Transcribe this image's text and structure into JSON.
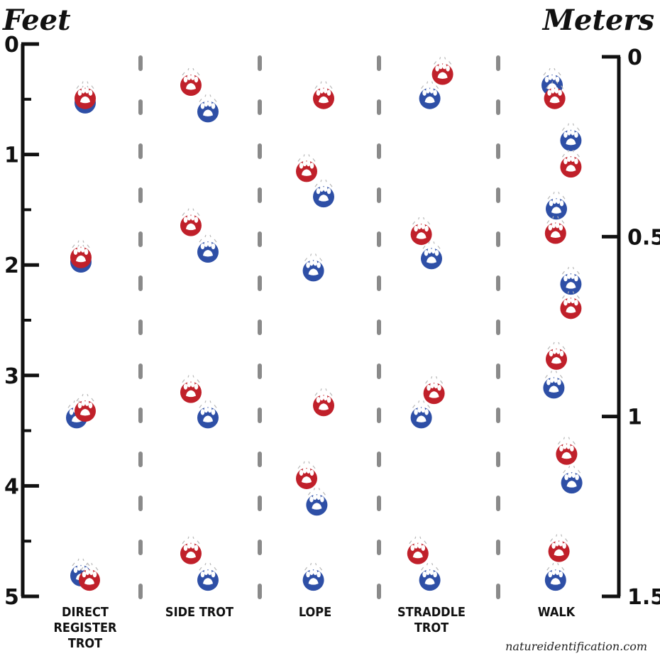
{
  "feet_axis": {
    "title": "Feet",
    "ticks": [
      {
        "value": 0,
        "label": "0"
      },
      {
        "value": 1,
        "label": "1"
      },
      {
        "value": 2,
        "label": "2"
      },
      {
        "value": 3,
        "label": "3"
      },
      {
        "value": 4,
        "label": "4"
      },
      {
        "value": 5,
        "label": "5"
      }
    ]
  },
  "meters_axis": {
    "title": "Meters",
    "ticks": [
      {
        "value": 0,
        "label": "0"
      },
      {
        "value": 0.5,
        "label": "0.5"
      },
      {
        "value": 1,
        "label": "1"
      },
      {
        "value": 1.5,
        "label": "1.5"
      }
    ]
  },
  "colors": {
    "front_paw": "#c0202a",
    "hind_paw": "#2e4fa6",
    "axis": "#111111",
    "divider": "#8a8a8a"
  },
  "gaits": [
    {
      "label_lines": [
        "DIRECT",
        "REGISTER",
        "TROT"
      ],
      "prints": [
        {
          "paw": "hind",
          "side": 0,
          "ft": 0.52
        },
        {
          "paw": "front",
          "side": 0,
          "ft": 0.48
        },
        {
          "paw": "hind",
          "side": -0.5,
          "ft": 1.96
        },
        {
          "paw": "front",
          "side": -0.5,
          "ft": 1.92
        },
        {
          "paw": "hind",
          "side": -1,
          "ft": 3.37
        },
        {
          "paw": "front",
          "side": 0,
          "ft": 3.31
        },
        {
          "paw": "hind",
          "side": -0.5,
          "ft": 4.8
        },
        {
          "paw": "front",
          "side": 0.5,
          "ft": 4.84
        }
      ]
    },
    {
      "label_lines": [
        "SIDE TROT"
      ],
      "prints": [
        {
          "paw": "front",
          "side": -1,
          "ft": 0.36
        },
        {
          "paw": "hind",
          "side": 1,
          "ft": 0.6
        },
        {
          "paw": "front",
          "side": -1,
          "ft": 1.63
        },
        {
          "paw": "hind",
          "side": 1,
          "ft": 1.87
        },
        {
          "paw": "front",
          "side": -1,
          "ft": 3.14
        },
        {
          "paw": "hind",
          "side": 1,
          "ft": 3.37
        },
        {
          "paw": "front",
          "side": -1,
          "ft": 4.6
        },
        {
          "paw": "hind",
          "side": 1,
          "ft": 4.84
        }
      ]
    },
    {
      "label_lines": [
        "LOPE"
      ],
      "prints": [
        {
          "paw": "front",
          "side": 1,
          "ft": 0.48
        },
        {
          "paw": "front",
          "side": -1,
          "ft": 1.14
        },
        {
          "paw": "hind",
          "side": 1,
          "ft": 1.37
        },
        {
          "paw": "hind",
          "side": -0.2,
          "ft": 2.04
        },
        {
          "paw": "front",
          "side": 1,
          "ft": 3.26
        },
        {
          "paw": "front",
          "side": -1,
          "ft": 3.92
        },
        {
          "paw": "hind",
          "side": 0.2,
          "ft": 4.16
        },
        {
          "paw": "hind",
          "side": -0.2,
          "ft": 4.84
        }
      ]
    },
    {
      "label_lines": [
        "STRADDLE",
        "TROT"
      ],
      "prints": [
        {
          "paw": "front",
          "side": 1.3,
          "ft": 0.26
        },
        {
          "paw": "hind",
          "side": -0.2,
          "ft": 0.48
        },
        {
          "paw": "front",
          "side": -1.2,
          "ft": 1.71
        },
        {
          "paw": "hind",
          "side": 0,
          "ft": 1.93
        },
        {
          "paw": "front",
          "side": 0.3,
          "ft": 3.15
        },
        {
          "paw": "hind",
          "side": -1.2,
          "ft": 3.37
        },
        {
          "paw": "front",
          "side": -1.6,
          "ft": 4.6
        },
        {
          "paw": "hind",
          "side": -0.2,
          "ft": 4.84
        }
      ]
    },
    {
      "label_lines": [
        "WALK"
      ],
      "prints": [
        {
          "paw": "hind",
          "side": -0.5,
          "ft": 0.36
        },
        {
          "paw": "front",
          "side": -0.2,
          "ft": 0.48
        },
        {
          "paw": "hind",
          "side": 1.7,
          "ft": 0.86
        },
        {
          "paw": "front",
          "side": 1.7,
          "ft": 1.1
        },
        {
          "paw": "hind",
          "side": 0,
          "ft": 1.48
        },
        {
          "paw": "front",
          "side": -0.1,
          "ft": 1.7
        },
        {
          "paw": "hind",
          "side": 1.7,
          "ft": 2.16
        },
        {
          "paw": "front",
          "side": 1.7,
          "ft": 2.38
        },
        {
          "paw": "front",
          "side": 0,
          "ft": 2.84
        },
        {
          "paw": "hind",
          "side": -0.3,
          "ft": 3.1
        },
        {
          "paw": "front",
          "side": 1.2,
          "ft": 3.7
        },
        {
          "paw": "hind",
          "side": 1.8,
          "ft": 3.96
        },
        {
          "paw": "front",
          "side": 0.3,
          "ft": 4.58
        },
        {
          "paw": "hind",
          "side": -0.1,
          "ft": 4.84
        }
      ]
    }
  ],
  "credit": "natureidentification.com"
}
